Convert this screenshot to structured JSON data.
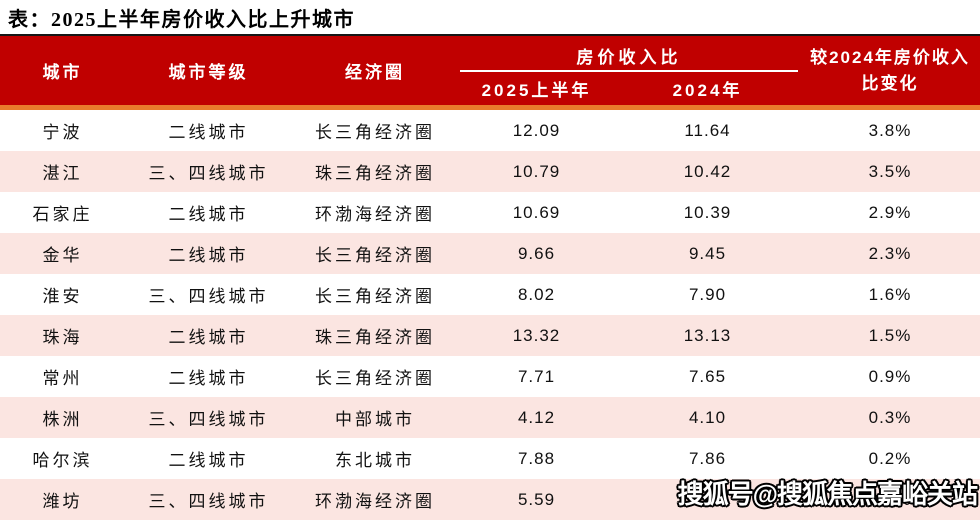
{
  "page": {
    "title": "表：2025上半年房价收入比上升城市"
  },
  "header": {
    "city": "城市",
    "tier": "城市等级",
    "circle": "经济圈",
    "ratio_group": "房价收入比",
    "sub_2025h1": "2025上半年",
    "sub_2024": "2024年",
    "change_line1": "较2024年房价收入",
    "change_line2": "比变化"
  },
  "chart_data": {
    "type": "table",
    "title": "2025上半年房价收入比上升城市",
    "columns": [
      "城市",
      "城市等级",
      "经济圈",
      "房价收入比 2025上半年",
      "房价收入比 2024年",
      "较2024年房价收入比变化"
    ],
    "rows": [
      [
        "宁波",
        "二线城市",
        "长三角经济圈",
        "12.09",
        "11.64",
        "3.8%"
      ],
      [
        "湛江",
        "三、四线城市",
        "珠三角经济圈",
        "10.79",
        "10.42",
        "3.5%"
      ],
      [
        "石家庄",
        "二线城市",
        "环渤海经济圈",
        "10.69",
        "10.39",
        "2.9%"
      ],
      [
        "金华",
        "二线城市",
        "长三角经济圈",
        "9.66",
        "9.45",
        "2.3%"
      ],
      [
        "淮安",
        "三、四线城市",
        "长三角经济圈",
        "8.02",
        "7.90",
        "1.6%"
      ],
      [
        "珠海",
        "二线城市",
        "珠三角经济圈",
        "13.32",
        "13.13",
        "1.5%"
      ],
      [
        "常州",
        "二线城市",
        "长三角经济圈",
        "7.71",
        "7.65",
        "0.9%"
      ],
      [
        "株洲",
        "三、四线城市",
        "中部城市",
        "4.12",
        "4.10",
        "0.3%"
      ],
      [
        "哈尔滨",
        "二线城市",
        "东北城市",
        "7.88",
        "7.86",
        "0.2%"
      ],
      [
        "潍坊",
        "三、四线城市",
        "环渤海经济圈",
        "5.59",
        "5.58",
        "0.2%"
      ]
    ]
  },
  "watermark": {
    "text": "搜狐号@搜狐焦点嘉峪关站"
  },
  "colors": {
    "header-red": "#C00000",
    "divider-orange": "#E97B2C",
    "row-pink": "#FBE5E1",
    "top-line-black": "#161616",
    "header-text": "#FFFFFF",
    "body-text": "#111111"
  }
}
